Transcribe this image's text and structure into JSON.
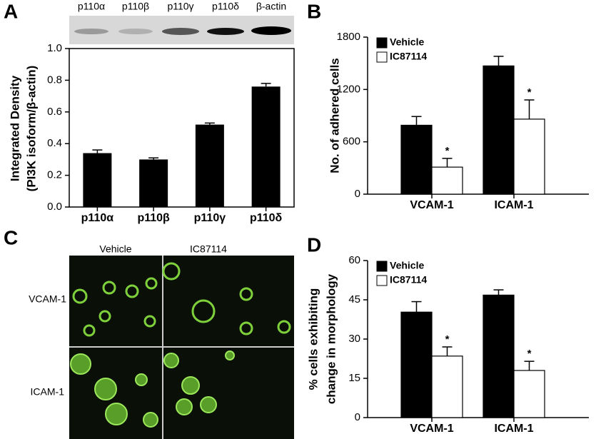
{
  "panel_labels": [
    "A",
    "B",
    "C",
    "D"
  ],
  "blot": {
    "lanes": [
      "p110α",
      "p110β",
      "p110γ",
      "p110δ",
      "β-actin"
    ]
  },
  "micrograph": {
    "columns": [
      "Vehicle",
      "IC87114"
    ],
    "rows": [
      "VCAM-1",
      "ICAM-1"
    ]
  },
  "chart_data": [
    {
      "type": "bar",
      "ylabel": [
        "Integrated Density",
        "(PI3K isoform/β-actin)"
      ],
      "categories": [
        "p110α",
        "p110β",
        "p110γ",
        "p110δ"
      ],
      "values": [
        0.34,
        0.3,
        0.52,
        0.76
      ],
      "errors": [
        0.02,
        0.01,
        0.01,
        0.02
      ],
      "color": "#000000",
      "ylim": [
        0,
        1
      ],
      "yticks": [
        {
          "value": 0,
          "label": "0.0"
        },
        0.2,
        0.4,
        0.6,
        0.8,
        {
          "value": 1,
          "label": "1.0"
        }
      ]
    },
    {
      "type": "grouped_bar",
      "ylabel": [
        "No. of adhered cells"
      ],
      "categories": [
        "VCAM-1",
        "ICAM-1"
      ],
      "series": [
        {
          "name": "Vehicle",
          "color": "#000000",
          "values": [
            790,
            1470
          ],
          "errors": [
            100,
            110
          ]
        },
        {
          "name": "IC87114",
          "color": "#ffffff",
          "values": [
            310,
            860
          ],
          "errors": [
            100,
            220
          ],
          "annotations": [
            "*",
            "*"
          ]
        }
      ],
      "ylim": [
        0,
        1800
      ],
      "yticks": [
        0,
        600,
        1200,
        1800
      ],
      "legend": "upper left"
    },
    {
      "type": "grouped_bar",
      "ylabel": [
        "% cells exhibiting",
        "change in morphology"
      ],
      "categories": [
        "VCAM-1",
        "ICAM-1"
      ],
      "series": [
        {
          "name": "Vehicle",
          "color": "#000000",
          "values": [
            40.3,
            46.8
          ],
          "errors": [
            4,
            2
          ]
        },
        {
          "name": "IC87114",
          "color": "#ffffff",
          "values": [
            23.5,
            18
          ],
          "errors": [
            3.5,
            3.5
          ],
          "annotations": [
            "*",
            "*"
          ]
        }
      ],
      "ylim": [
        0,
        60
      ],
      "yticks": [
        0,
        15,
        30,
        45,
        60
      ],
      "legend": "upper left"
    }
  ]
}
